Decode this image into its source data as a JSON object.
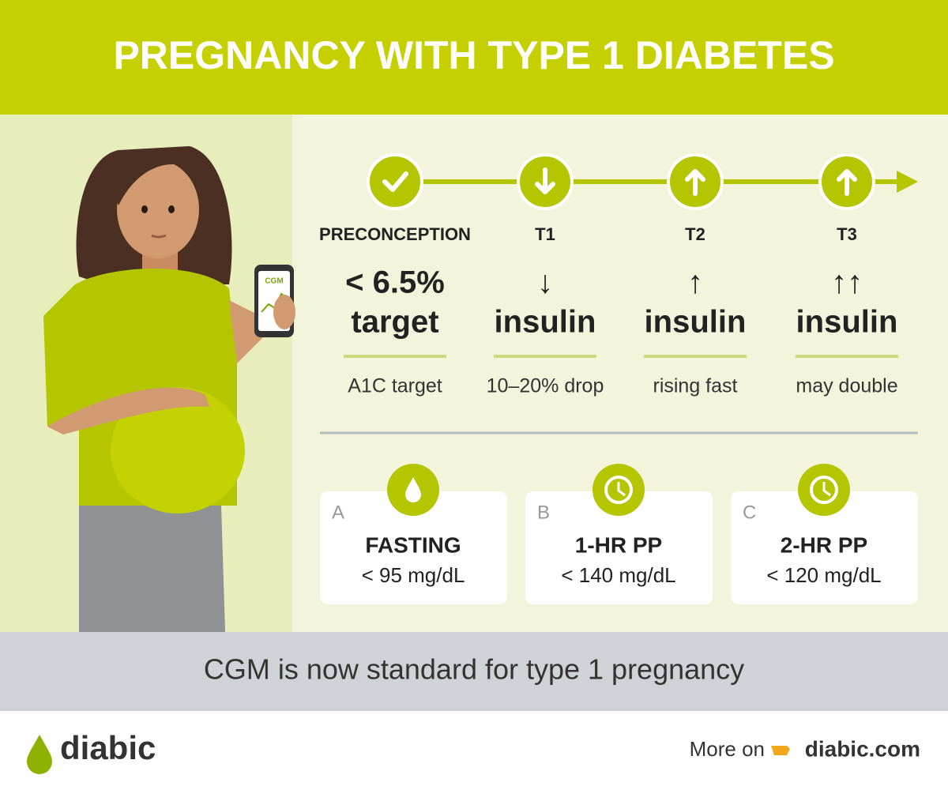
{
  "header": {
    "title": "PREGNANCY WITH TYPE 1 DIABETES"
  },
  "illustration": {
    "phone_label": "CGM"
  },
  "timeline": {
    "stages": [
      {
        "label": "PRECONCEPTION",
        "line1": "< 6.5%",
        "line2": "target",
        "note": "A1C target"
      },
      {
        "label": "T1",
        "line1": "↓",
        "line2": "insulin",
        "note": "10–20% drop"
      },
      {
        "label": "T2",
        "line1": "↑",
        "line2": "insulin",
        "note": "rising fast"
      },
      {
        "label": "T3",
        "line1": "↑↑",
        "line2": "insulin",
        "note": "may double"
      }
    ]
  },
  "targets": [
    {
      "letter": "A",
      "title": "FASTING",
      "value": "< 95 mg/dL"
    },
    {
      "letter": "B",
      "title": "1-HR PP",
      "value": "< 140 mg/dL"
    },
    {
      "letter": "C",
      "title": "2-HR PP",
      "value": "< 120 mg/dL"
    }
  ],
  "banner": {
    "text": "CGM is now standard for type 1 pregnancy"
  },
  "footer": {
    "brand": "diabic",
    "more": "More on",
    "link": "diabic.com"
  }
}
